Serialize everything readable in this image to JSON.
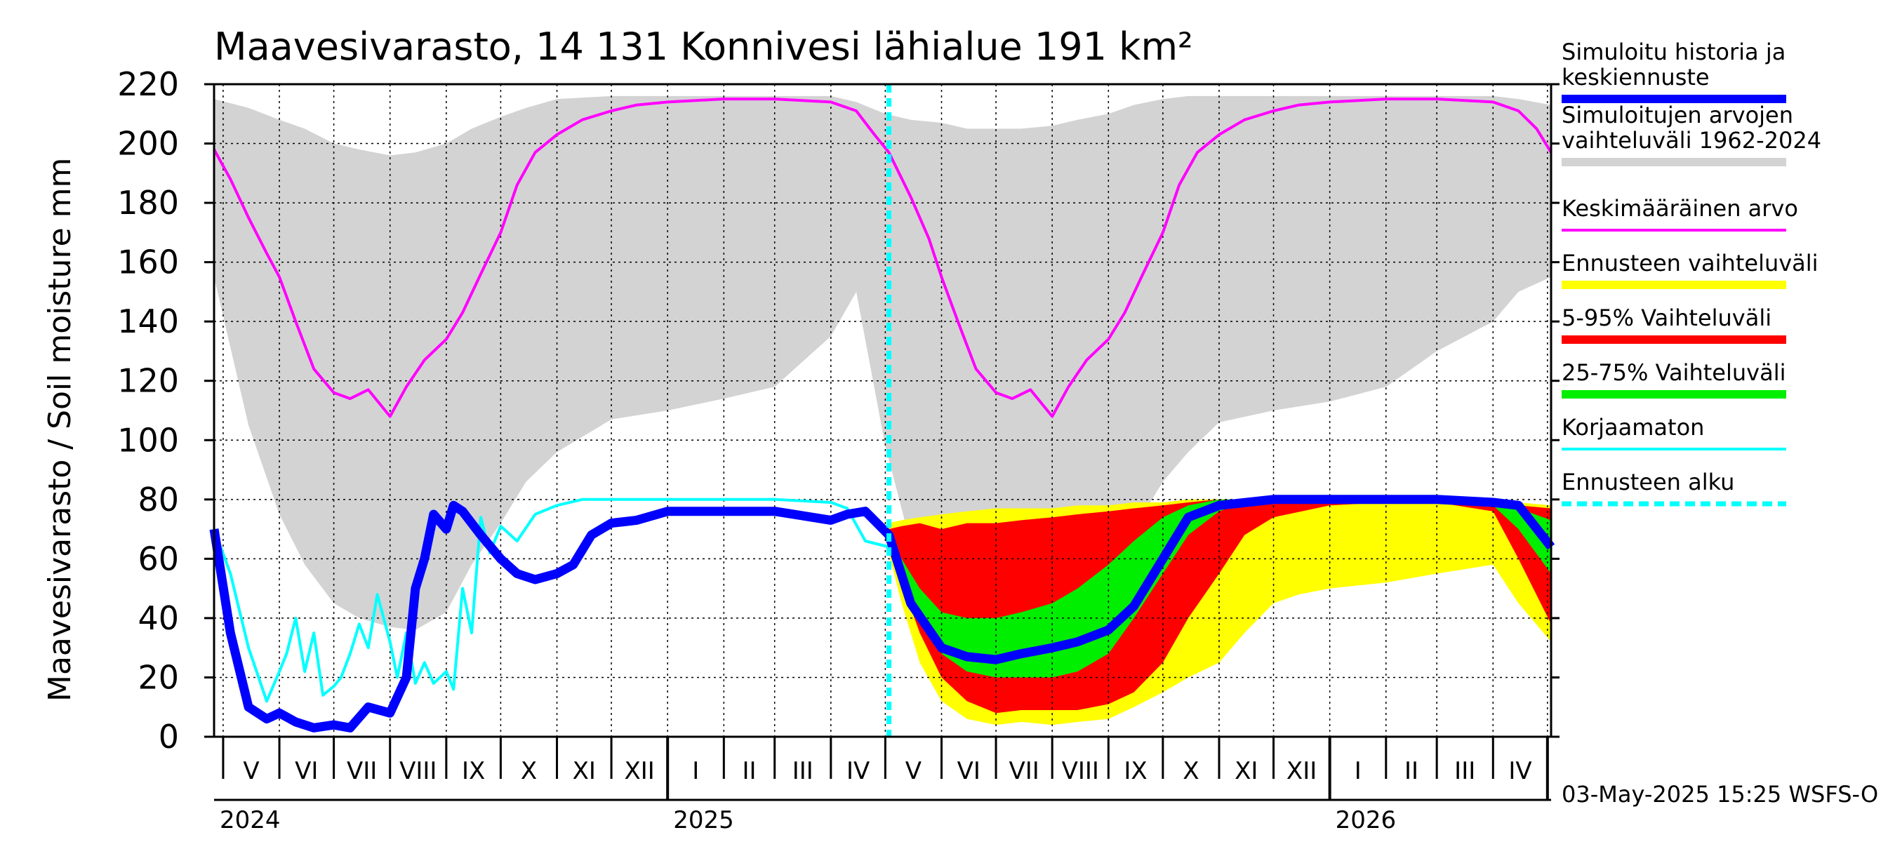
{
  "chart_data": {
    "type": "area",
    "title": "Maavesivarasto, 14 131 Konnivesi lähialue 191 km²",
    "ylabel": "Maavesivarasto / Soil moisture   mm",
    "ylim": [
      0,
      220
    ],
    "yticks": [
      0,
      20,
      40,
      60,
      80,
      100,
      120,
      140,
      160,
      180,
      200,
      220
    ],
    "grid": true,
    "legend_position": "right",
    "x_range": [
      "2024-04-26",
      "2026-05-03"
    ],
    "months": [
      {
        "label": "V",
        "start": "2024-05-01"
      },
      {
        "label": "VI",
        "start": "2024-06-01"
      },
      {
        "label": "VII",
        "start": "2024-07-01"
      },
      {
        "label": "VIII",
        "start": "2024-08-01"
      },
      {
        "label": "IX",
        "start": "2024-09-01"
      },
      {
        "label": "X",
        "start": "2024-10-01"
      },
      {
        "label": "XI",
        "start": "2024-11-01"
      },
      {
        "label": "XII",
        "start": "2024-12-01"
      },
      {
        "label": "I",
        "start": "2025-01-01"
      },
      {
        "label": "II",
        "start": "2025-02-01"
      },
      {
        "label": "III",
        "start": "2025-03-01"
      },
      {
        "label": "IV",
        "start": "2025-04-01"
      },
      {
        "label": "V",
        "start": "2025-05-01"
      },
      {
        "label": "VI",
        "start": "2025-06-01"
      },
      {
        "label": "VII",
        "start": "2025-07-01"
      },
      {
        "label": "VIII",
        "start": "2025-08-01"
      },
      {
        "label": "IX",
        "start": "2025-09-01"
      },
      {
        "label": "X",
        "start": "2025-10-01"
      },
      {
        "label": "XI",
        "start": "2025-11-01"
      },
      {
        "label": "XII",
        "start": "2025-12-01"
      },
      {
        "label": "I",
        "start": "2026-01-01"
      },
      {
        "label": "II",
        "start": "2026-02-01"
      },
      {
        "label": "III",
        "start": "2026-03-01"
      },
      {
        "label": "IV",
        "start": "2026-04-01"
      },
      {
        "label": "",
        "start": "2026-05-01"
      }
    ],
    "years": [
      {
        "label": "2024",
        "date": "2024-04-26"
      },
      {
        "label": "2025",
        "date": "2025-01-01"
      },
      {
        "label": "2026",
        "date": "2026-01-01"
      }
    ],
    "forecast_start": "2025-05-03",
    "colors": {
      "history": "#d3d3d3",
      "mean": "#ff00ff",
      "simulated": "#0000ff",
      "uncorrected": "#00ffff",
      "forecast_range": "#ffff00",
      "p5_95": "#ff0000",
      "p25_75": "#00ee00",
      "grid": "#000000"
    },
    "series": [
      {
        "name": "Simuloitujen arvojen vaihteluväli 1962-2024",
        "kind": "band",
        "x": [
          "2024-04-26",
          "2024-05-15",
          "2024-06-01",
          "2024-06-15",
          "2024-07-01",
          "2024-07-15",
          "2024-08-01",
          "2024-08-15",
          "2024-09-01",
          "2024-09-15",
          "2024-10-01",
          "2024-10-15",
          "2024-11-01",
          "2024-12-01",
          "2025-01-01",
          "2025-02-01",
          "2025-03-01",
          "2025-04-01",
          "2025-04-15",
          "2025-05-01",
          "2025-05-15",
          "2025-06-01",
          "2025-06-15",
          "2025-07-01",
          "2025-07-15",
          "2025-08-01",
          "2025-08-15",
          "2025-09-01",
          "2025-09-15",
          "2025-10-01",
          "2025-10-15",
          "2025-11-01",
          "2025-12-01",
          "2026-01-01",
          "2026-02-01",
          "2026-03-01",
          "2026-04-01",
          "2026-04-15",
          "2026-05-03"
        ],
        "upper": [
          215,
          212,
          208,
          205,
          200,
          198,
          196,
          197,
          200,
          205,
          209,
          212,
          215,
          216,
          216,
          216,
          216,
          216,
          214,
          210,
          208,
          207,
          205,
          205,
          205,
          206,
          208,
          210,
          213,
          215,
          216,
          216,
          216,
          216,
          216,
          216,
          216,
          215,
          213
        ],
        "lower": [
          155,
          105,
          75,
          58,
          45,
          40,
          37,
          36,
          42,
          58,
          72,
          86,
          96,
          107,
          110,
          114,
          118,
          135,
          150,
          98,
          65,
          52,
          45,
          40,
          37,
          36,
          40,
          50,
          70,
          86,
          96,
          106,
          110,
          113,
          118,
          130,
          140,
          150,
          155
        ]
      },
      {
        "name": "Keskimääräinen arvo",
        "kind": "line",
        "x": [
          "2024-04-26",
          "2024-05-05",
          "2024-05-15",
          "2024-05-25",
          "2024-06-01",
          "2024-06-10",
          "2024-06-20",
          "2024-07-01",
          "2024-07-10",
          "2024-07-20",
          "2024-08-01",
          "2024-08-10",
          "2024-08-20",
          "2024-09-01",
          "2024-09-10",
          "2024-09-20",
          "2024-10-01",
          "2024-10-10",
          "2024-10-20",
          "2024-11-01",
          "2024-11-15",
          "2024-12-01",
          "2024-12-15",
          "2025-01-01",
          "2025-02-01",
          "2025-03-01",
          "2025-04-01",
          "2025-04-15",
          "2025-04-25",
          "2025-05-03",
          "2025-05-15",
          "2025-05-25",
          "2025-06-01",
          "2025-06-10",
          "2025-06-20",
          "2025-07-01",
          "2025-07-10",
          "2025-07-20",
          "2025-08-01",
          "2025-08-10",
          "2025-08-20",
          "2025-09-01",
          "2025-09-10",
          "2025-09-20",
          "2025-10-01",
          "2025-10-10",
          "2025-10-20",
          "2025-11-01",
          "2025-11-15",
          "2025-12-01",
          "2025-12-15",
          "2026-01-01",
          "2026-02-01",
          "2026-03-01",
          "2026-04-01",
          "2026-04-15",
          "2026-04-25",
          "2026-05-03"
        ],
        "y": [
          198,
          188,
          175,
          163,
          155,
          140,
          124,
          116,
          114,
          117,
          108,
          118,
          127,
          134,
          143,
          156,
          170,
          186,
          197,
          203,
          208,
          211,
          213,
          214,
          215,
          215,
          214,
          211,
          203,
          197,
          182,
          168,
          155,
          140,
          124,
          116,
          114,
          117,
          108,
          118,
          127,
          134,
          143,
          156,
          170,
          186,
          197,
          203,
          208,
          211,
          213,
          214,
          215,
          215,
          214,
          211,
          205,
          197
        ]
      },
      {
        "name": "Ennusteen vaihteluväli",
        "kind": "band",
        "x": [
          "2025-05-03",
          "2025-05-10",
          "2025-05-20",
          "2025-06-01",
          "2025-06-15",
          "2025-07-01",
          "2025-07-15",
          "2025-08-01",
          "2025-08-15",
          "2025-09-01",
          "2025-09-15",
          "2025-10-01",
          "2025-10-15",
          "2025-11-01",
          "2025-11-15",
          "2025-12-01",
          "2025-12-15",
          "2026-01-01",
          "2026-02-01",
          "2026-03-01",
          "2026-04-01",
          "2026-04-15",
          "2026-05-03"
        ],
        "upper": [
          72,
          73,
          74,
          75,
          76,
          77,
          77,
          77,
          78,
          78,
          79,
          79,
          80,
          80,
          80,
          80,
          80,
          80,
          80,
          80,
          80,
          79,
          78
        ],
        "lower": [
          62,
          45,
          25,
          12,
          6,
          4,
          5,
          4,
          5,
          6,
          10,
          15,
          20,
          25,
          35,
          45,
          48,
          50,
          52,
          55,
          58,
          45,
          32
        ]
      },
      {
        "name": "5-95% Vaihteluväli",
        "kind": "band",
        "x": [
          "2025-05-03",
          "2025-05-10",
          "2025-05-20",
          "2025-06-01",
          "2025-06-15",
          "2025-07-01",
          "2025-07-15",
          "2025-08-01",
          "2025-08-15",
          "2025-09-01",
          "2025-09-15",
          "2025-10-01",
          "2025-10-15",
          "2025-11-01",
          "2025-11-15",
          "2025-12-01",
          "2026-01-01",
          "2026-02-01",
          "2026-03-01",
          "2026-04-01",
          "2026-04-15",
          "2026-05-03"
        ],
        "upper": [
          70,
          71,
          72,
          70,
          72,
          72,
          73,
          74,
          75,
          76,
          77,
          78,
          79,
          80,
          80,
          80,
          80,
          80,
          80,
          79,
          78,
          77
        ],
        "lower": [
          65,
          52,
          35,
          20,
          12,
          8,
          9,
          9,
          9,
          11,
          15,
          25,
          40,
          55,
          68,
          74,
          78,
          79,
          79,
          76,
          60,
          38
        ]
      },
      {
        "name": "25-75% Vaihteluväli",
        "kind": "band",
        "x": [
          "2025-05-03",
          "2025-05-10",
          "2025-05-20",
          "2025-06-01",
          "2025-06-15",
          "2025-07-01",
          "2025-07-15",
          "2025-08-01",
          "2025-08-15",
          "2025-09-01",
          "2025-09-15",
          "2025-10-01",
          "2025-10-15",
          "2025-11-01",
          "2025-11-15",
          "2025-12-01",
          "2026-01-01",
          "2026-02-01",
          "2026-03-01",
          "2026-04-01",
          "2026-04-15",
          "2026-05-03"
        ],
        "upper": [
          68,
          60,
          50,
          42,
          40,
          40,
          42,
          45,
          50,
          58,
          66,
          74,
          78,
          80,
          80,
          80,
          80,
          80,
          80,
          79,
          77,
          73
        ],
        "lower": [
          66,
          55,
          40,
          28,
          22,
          20,
          20,
          20,
          22,
          28,
          40,
          55,
          68,
          76,
          79,
          80,
          80,
          80,
          80,
          78,
          70,
          55
        ]
      },
      {
        "name": "Korjaamaton",
        "kind": "line",
        "x": [
          "2024-04-26",
          "2024-05-05",
          "2024-05-15",
          "2024-05-25",
          "2024-06-01",
          "2024-06-05",
          "2024-06-10",
          "2024-06-15",
          "2024-06-20",
          "2024-06-25",
          "2024-07-01",
          "2024-07-05",
          "2024-07-10",
          "2024-07-15",
          "2024-07-20",
          "2024-07-25",
          "2024-08-01",
          "2024-08-05",
          "2024-08-10",
          "2024-08-15",
          "2024-08-20",
          "2024-08-25",
          "2024-09-01",
          "2024-09-05",
          "2024-09-10",
          "2024-09-15",
          "2024-09-20",
          "2024-09-25",
          "2024-10-01",
          "2024-10-10",
          "2024-10-20",
          "2024-11-01",
          "2024-11-15",
          "2024-12-01",
          "2025-01-01",
          "2025-02-01",
          "2025-03-01",
          "2025-04-01",
          "2025-04-10",
          "2025-04-20",
          "2025-05-03"
        ],
        "y": [
          70,
          55,
          30,
          12,
          22,
          28,
          40,
          22,
          35,
          14,
          17,
          20,
          28,
          38,
          30,
          48,
          32,
          20,
          35,
          18,
          25,
          18,
          22,
          16,
          50,
          35,
          74,
          62,
          71,
          66,
          75,
          78,
          80,
          80,
          80,
          80,
          80,
          79,
          77,
          66,
          64
        ]
      },
      {
        "name": "Simuloitu historia ja keskiennuste",
        "kind": "line",
        "x": [
          "2024-04-26",
          "2024-05-05",
          "2024-05-15",
          "2024-05-25",
          "2024-06-01",
          "2024-06-10",
          "2024-06-20",
          "2024-07-01",
          "2024-07-10",
          "2024-07-20",
          "2024-08-01",
          "2024-08-10",
          "2024-08-15",
          "2024-08-20",
          "2024-08-25",
          "2024-09-01",
          "2024-09-05",
          "2024-09-10",
          "2024-09-15",
          "2024-09-20",
          "2024-10-01",
          "2024-10-10",
          "2024-10-20",
          "2024-11-01",
          "2024-11-10",
          "2024-11-20",
          "2024-12-01",
          "2024-12-15",
          "2025-01-01",
          "2025-02-01",
          "2025-03-01",
          "2025-04-01",
          "2025-04-10",
          "2025-04-20",
          "2025-05-03",
          "2025-05-15",
          "2025-06-01",
          "2025-06-15",
          "2025-07-01",
          "2025-07-15",
          "2025-08-01",
          "2025-08-15",
          "2025-09-01",
          "2025-09-15",
          "2025-10-01",
          "2025-10-15",
          "2025-11-01",
          "2025-12-01",
          "2026-01-01",
          "2026-02-01",
          "2026-03-01",
          "2026-04-01",
          "2026-04-15",
          "2026-05-03"
        ],
        "y": [
          70,
          35,
          10,
          6,
          8,
          5,
          3,
          4,
          3,
          10,
          8,
          20,
          50,
          60,
          75,
          70,
          78,
          76,
          72,
          68,
          60,
          55,
          53,
          55,
          58,
          68,
          72,
          73,
          76,
          76,
          76,
          73,
          75,
          76,
          68,
          45,
          30,
          27,
          26,
          28,
          30,
          32,
          36,
          44,
          60,
          74,
          78,
          80,
          80,
          80,
          80,
          79,
          78,
          64
        ]
      }
    ],
    "legend": [
      {
        "lines": [
          "Simuloitu historia ja",
          "keskiennuste"
        ],
        "color": "#0000ff",
        "style": "thick"
      },
      {
        "lines": [
          "Simuloitujen arvojen",
          "vaihteluväli 1962-2024"
        ],
        "color": "#d3d3d3",
        "style": "thick"
      },
      {
        "lines": [
          "Keskimääräinen arvo"
        ],
        "color": "#ff00ff",
        "style": "thin"
      },
      {
        "lines": [
          "Ennusteen vaihteluväli"
        ],
        "color": "#ffff00",
        "style": "thick"
      },
      {
        "lines": [
          "5-95% Vaihteluväli"
        ],
        "color": "#ff0000",
        "style": "thick"
      },
      {
        "lines": [
          "25-75% Vaihteluväli"
        ],
        "color": "#00ee00",
        "style": "thick"
      },
      {
        "lines": [
          "Korjaamaton"
        ],
        "color": "#00ffff",
        "style": "thin"
      },
      {
        "lines": [
          "Ennusteen alku"
        ],
        "color": "#00ffff",
        "style": "dashed"
      }
    ],
    "footer": "03-May-2025 15:25 WSFS-O"
  }
}
